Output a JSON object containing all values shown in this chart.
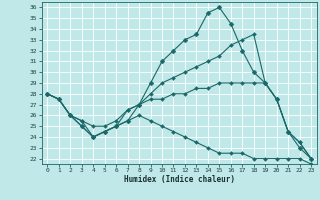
{
  "xlabel": "Humidex (Indice chaleur)",
  "background_color": "#c0e8e8",
  "grid_color": "#ffffff",
  "line_color": "#1a6868",
  "xlim": [
    -0.5,
    23.5
  ],
  "ylim": [
    21.5,
    36.5
  ],
  "xticks": [
    0,
    1,
    2,
    3,
    4,
    5,
    6,
    7,
    8,
    9,
    10,
    11,
    12,
    13,
    14,
    15,
    16,
    17,
    18,
    19,
    20,
    21,
    22,
    23
  ],
  "yticks": [
    22,
    23,
    24,
    25,
    26,
    27,
    28,
    29,
    30,
    31,
    32,
    33,
    34,
    35,
    36
  ],
  "line1_x": [
    0,
    1,
    2,
    3,
    4,
    5,
    6,
    7,
    8,
    9,
    10,
    11,
    12,
    13,
    14,
    15,
    16,
    17,
    18,
    19,
    20,
    21,
    22,
    23
  ],
  "line1_y": [
    28,
    27.5,
    26,
    25,
    24,
    24.5,
    25,
    25.5,
    27,
    29,
    31,
    32,
    33,
    33.5,
    35.5,
    36,
    34.5,
    32,
    30,
    29,
    27.5,
    24.5,
    23,
    22
  ],
  "line2_x": [
    0,
    1,
    2,
    3,
    4,
    5,
    6,
    7,
    8,
    9,
    10,
    11,
    12,
    13,
    14,
    15,
    16,
    17,
    18,
    19,
    20,
    21,
    22,
    23
  ],
  "line2_y": [
    28,
    27.5,
    26,
    25,
    24,
    24.5,
    25,
    26.5,
    27,
    28,
    29,
    29.5,
    30,
    30.5,
    31,
    31.5,
    32.5,
    33,
    33.5,
    29,
    27.5,
    24.5,
    23.5,
    22
  ],
  "line3_x": [
    0,
    1,
    2,
    3,
    4,
    5,
    6,
    7,
    8,
    9,
    10,
    11,
    12,
    13,
    14,
    15,
    16,
    17,
    18,
    19,
    20,
    21,
    22,
    23
  ],
  "line3_y": [
    28,
    27.5,
    26,
    25.5,
    25,
    25,
    25.5,
    26.5,
    27,
    27.5,
    27.5,
    28,
    28,
    28.5,
    28.5,
    29,
    29,
    29,
    29,
    29,
    27.5,
    24.5,
    23.5,
    22
  ],
  "line4_x": [
    0,
    1,
    2,
    3,
    4,
    5,
    6,
    7,
    8,
    9,
    10,
    11,
    12,
    13,
    14,
    15,
    16,
    17,
    18,
    19,
    20,
    21,
    22,
    23
  ],
  "line4_y": [
    28,
    27.5,
    26,
    25.5,
    24,
    24.5,
    25,
    25.5,
    26,
    25.5,
    25,
    24.5,
    24,
    23.5,
    23,
    22.5,
    22.5,
    22.5,
    22,
    22,
    22,
    22,
    22,
    21.5
  ]
}
